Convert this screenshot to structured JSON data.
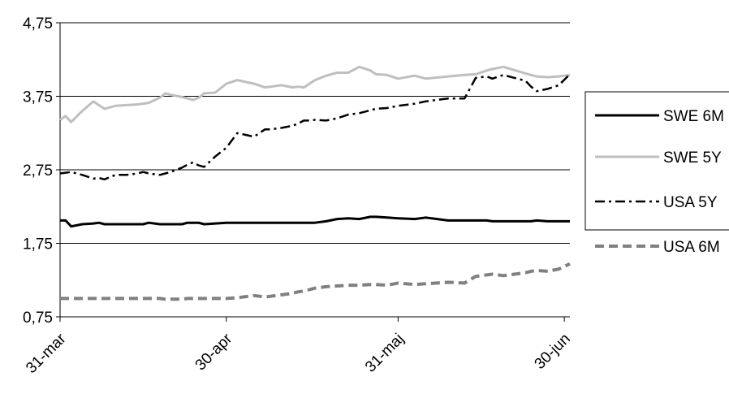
{
  "chart_data": {
    "type": "line",
    "title": "",
    "xlabel": "",
    "ylabel": "",
    "ylim": [
      0.75,
      4.75
    ],
    "yticks": [
      0.75,
      1.75,
      2.75,
      3.75,
      4.75
    ],
    "ytick_labels": [
      "0,75",
      "1,75",
      "2,75",
      "3,75",
      "4,75"
    ],
    "xlim": [
      0,
      92
    ],
    "xticks": [
      0,
      30,
      61,
      91
    ],
    "xtick_labels": [
      "31-mar",
      "30-apr",
      "31-maj",
      "30-jun"
    ],
    "grid": "horizontal",
    "legend_position": "right",
    "series": [
      {
        "name": "SWE 6M",
        "color": "#000000",
        "style": "solid",
        "x": [
          0,
          1,
          2,
          4,
          6,
          7,
          8,
          10,
          12,
          14,
          15,
          16,
          18,
          19,
          20,
          22,
          23,
          24,
          25,
          26,
          28,
          30,
          32,
          35,
          37,
          38,
          40,
          42,
          43,
          44,
          45,
          46,
          48,
          50,
          52,
          54,
          56,
          57,
          59,
          61,
          64,
          66,
          70,
          73,
          75,
          77,
          78,
          80,
          84,
          85,
          86,
          88,
          90,
          92
        ],
        "y": [
          2.06,
          2.06,
          1.98,
          2.01,
          2.02,
          2.03,
          2.01,
          2.01,
          2.01,
          2.01,
          2.01,
          2.03,
          2.01,
          2.01,
          2.01,
          2.01,
          2.03,
          2.03,
          2.03,
          2.01,
          2.02,
          2.03,
          2.03,
          2.03,
          2.03,
          2.03,
          2.03,
          2.03,
          2.03,
          2.03,
          2.03,
          2.03,
          2.05,
          2.08,
          2.09,
          2.08,
          2.11,
          2.11,
          2.1,
          2.09,
          2.08,
          2.1,
          2.06,
          2.06,
          2.06,
          2.06,
          2.05,
          2.05,
          2.05,
          2.05,
          2.06,
          2.05,
          2.05,
          2.05
        ]
      },
      {
        "name": "SWE 5Y",
        "color": "#bfbfbf",
        "style": "solid",
        "x": [
          0,
          1,
          2,
          4,
          6,
          7,
          8,
          10,
          12,
          14,
          15,
          16,
          18,
          19,
          20,
          22,
          23,
          24,
          25,
          26,
          28,
          30,
          32,
          35,
          37,
          38,
          40,
          42,
          43,
          44,
          45,
          46,
          48,
          50,
          52,
          54,
          56,
          57,
          59,
          61,
          64,
          66,
          70,
          73,
          75,
          77,
          78,
          80,
          84,
          85,
          86,
          88,
          90,
          92
        ],
        "y": [
          3.43,
          3.48,
          3.4,
          3.55,
          3.68,
          3.63,
          3.58,
          3.62,
          3.63,
          3.64,
          3.65,
          3.66,
          3.73,
          3.79,
          3.77,
          3.74,
          3.72,
          3.7,
          3.73,
          3.79,
          3.8,
          3.92,
          3.97,
          3.92,
          3.87,
          3.88,
          3.9,
          3.87,
          3.88,
          3.87,
          3.92,
          3.97,
          4.03,
          4.07,
          4.07,
          4.15,
          4.1,
          4.05,
          4.04,
          3.99,
          4.03,
          3.99,
          4.02,
          4.04,
          4.05,
          4.1,
          4.12,
          4.15,
          4.06,
          4.04,
          4.02,
          4.01,
          4.02,
          4.04
        ]
      },
      {
        "name": "USA 5Y",
        "color": "#000000",
        "style": "dashdot",
        "x": [
          0,
          1,
          2,
          4,
          6,
          7,
          8,
          10,
          12,
          14,
          15,
          16,
          18,
          19,
          20,
          22,
          23,
          24,
          25,
          26,
          28,
          30,
          32,
          35,
          37,
          38,
          40,
          42,
          43,
          44,
          45,
          46,
          48,
          50,
          52,
          54,
          56,
          57,
          59,
          61,
          64,
          66,
          70,
          73,
          75,
          77,
          78,
          80,
          84,
          85,
          86,
          88,
          90,
          92
        ],
        "y": [
          2.7,
          2.71,
          2.72,
          2.68,
          2.63,
          2.64,
          2.62,
          2.68,
          2.68,
          2.7,
          2.72,
          2.7,
          2.68,
          2.7,
          2.72,
          2.78,
          2.82,
          2.85,
          2.81,
          2.79,
          2.93,
          3.05,
          3.25,
          3.2,
          3.3,
          3.3,
          3.32,
          3.35,
          3.38,
          3.42,
          3.42,
          3.43,
          3.42,
          3.45,
          3.5,
          3.52,
          3.56,
          3.58,
          3.59,
          3.62,
          3.65,
          3.68,
          3.72,
          3.72,
          4.0,
          4.02,
          3.99,
          4.04,
          3.96,
          3.88,
          3.82,
          3.85,
          3.9,
          4.05
        ]
      },
      {
        "name": "USA 6M",
        "color": "#808080",
        "style": "dashed",
        "x": [
          0,
          1,
          2,
          4,
          6,
          7,
          8,
          10,
          12,
          14,
          15,
          16,
          18,
          19,
          20,
          22,
          23,
          24,
          25,
          26,
          28,
          30,
          32,
          35,
          37,
          38,
          40,
          42,
          43,
          44,
          45,
          46,
          48,
          50,
          52,
          54,
          56,
          57,
          59,
          61,
          64,
          66,
          70,
          73,
          75,
          77,
          78,
          80,
          84,
          85,
          86,
          88,
          90,
          92
        ],
        "y": [
          1.0,
          1.0,
          1.0,
          1.0,
          1.0,
          1.0,
          1.0,
          1.0,
          1.0,
          1.0,
          1.0,
          1.0,
          1.0,
          0.99,
          0.99,
          0.99,
          1.0,
          1.0,
          1.0,
          1.0,
          1.0,
          1.0,
          1.01,
          1.04,
          1.02,
          1.03,
          1.05,
          1.07,
          1.09,
          1.1,
          1.12,
          1.14,
          1.16,
          1.17,
          1.18,
          1.18,
          1.19,
          1.19,
          1.18,
          1.21,
          1.19,
          1.2,
          1.22,
          1.21,
          1.3,
          1.32,
          1.33,
          1.31,
          1.35,
          1.37,
          1.38,
          1.37,
          1.4,
          1.47
        ]
      }
    ]
  }
}
